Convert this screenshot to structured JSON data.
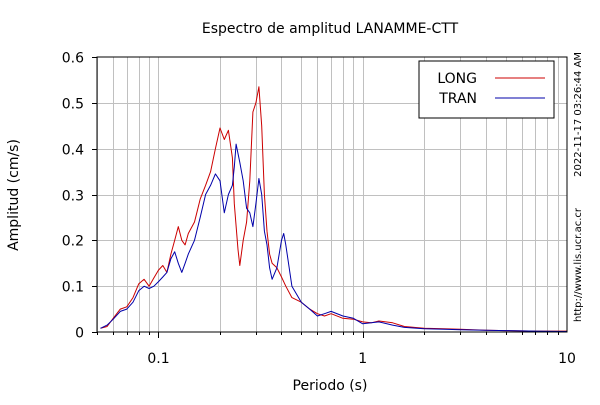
{
  "chart_data": {
    "type": "line",
    "title": "Espectro de amplitud LANAMME-CTT",
    "xlabel": "Periodo (s)",
    "ylabel": "Amplitud (cm/s)",
    "x_scale": "log",
    "xlim": [
      0.05,
      10
    ],
    "ylim": [
      0,
      0.6
    ],
    "x_ticks": [
      {
        "value": 0.1,
        "label": "0.1"
      },
      {
        "value": 1,
        "label": "1"
      },
      {
        "value": 10,
        "label": "10"
      }
    ],
    "y_ticks": [
      {
        "value": 0,
        "label": "0"
      },
      {
        "value": 0.1,
        "label": "0.1"
      },
      {
        "value": 0.2,
        "label": "0.2"
      },
      {
        "value": 0.3,
        "label": "0.3"
      },
      {
        "value": 0.4,
        "label": "0.4"
      },
      {
        "value": 0.5,
        "label": "0.5"
      },
      {
        "value": 0.6,
        "label": "0.6"
      }
    ],
    "grid": true,
    "legend_position": "top-right",
    "series": [
      {
        "name": "LONG",
        "color": "#cc0000",
        "points": [
          [
            0.052,
            0.008
          ],
          [
            0.056,
            0.012
          ],
          [
            0.06,
            0.03
          ],
          [
            0.065,
            0.05
          ],
          [
            0.07,
            0.055
          ],
          [
            0.075,
            0.075
          ],
          [
            0.08,
            0.105
          ],
          [
            0.085,
            0.115
          ],
          [
            0.09,
            0.1
          ],
          [
            0.095,
            0.118
          ],
          [
            0.1,
            0.135
          ],
          [
            0.105,
            0.145
          ],
          [
            0.11,
            0.13
          ],
          [
            0.115,
            0.17
          ],
          [
            0.12,
            0.2
          ],
          [
            0.125,
            0.23
          ],
          [
            0.13,
            0.2
          ],
          [
            0.135,
            0.19
          ],
          [
            0.14,
            0.215
          ],
          [
            0.15,
            0.24
          ],
          [
            0.16,
            0.29
          ],
          [
            0.17,
            0.32
          ],
          [
            0.18,
            0.35
          ],
          [
            0.19,
            0.4
          ],
          [
            0.2,
            0.445
          ],
          [
            0.21,
            0.42
          ],
          [
            0.22,
            0.44
          ],
          [
            0.23,
            0.38
          ],
          [
            0.235,
            0.28
          ],
          [
            0.245,
            0.18
          ],
          [
            0.25,
            0.145
          ],
          [
            0.26,
            0.2
          ],
          [
            0.27,
            0.24
          ],
          [
            0.28,
            0.33
          ],
          [
            0.29,
            0.48
          ],
          [
            0.3,
            0.5
          ],
          [
            0.31,
            0.535
          ],
          [
            0.32,
            0.45
          ],
          [
            0.33,
            0.3
          ],
          [
            0.34,
            0.22
          ],
          [
            0.35,
            0.17
          ],
          [
            0.36,
            0.15
          ],
          [
            0.38,
            0.14
          ],
          [
            0.4,
            0.12
          ],
          [
            0.42,
            0.1
          ],
          [
            0.45,
            0.075
          ],
          [
            0.5,
            0.065
          ],
          [
            0.55,
            0.05
          ],
          [
            0.6,
            0.04
          ],
          [
            0.65,
            0.035
          ],
          [
            0.7,
            0.04
          ],
          [
            0.8,
            0.03
          ],
          [
            0.9,
            0.028
          ],
          [
            1.0,
            0.022
          ],
          [
            1.1,
            0.02
          ],
          [
            1.2,
            0.024
          ],
          [
            1.4,
            0.02
          ],
          [
            1.6,
            0.012
          ],
          [
            2.0,
            0.008
          ],
          [
            2.5,
            0.007
          ],
          [
            3.0,
            0.006
          ],
          [
            4.0,
            0.004
          ],
          [
            5.0,
            0.003
          ],
          [
            7.0,
            0.002
          ],
          [
            10.0,
            0.002
          ]
        ]
      },
      {
        "name": "TRAN",
        "color": "#0000aa",
        "points": [
          [
            0.052,
            0.008
          ],
          [
            0.056,
            0.015
          ],
          [
            0.06,
            0.028
          ],
          [
            0.065,
            0.045
          ],
          [
            0.07,
            0.05
          ],
          [
            0.075,
            0.065
          ],
          [
            0.08,
            0.09
          ],
          [
            0.085,
            0.1
          ],
          [
            0.09,
            0.095
          ],
          [
            0.095,
            0.1
          ],
          [
            0.1,
            0.11
          ],
          [
            0.105,
            0.12
          ],
          [
            0.11,
            0.13
          ],
          [
            0.115,
            0.16
          ],
          [
            0.12,
            0.175
          ],
          [
            0.125,
            0.15
          ],
          [
            0.13,
            0.13
          ],
          [
            0.135,
            0.15
          ],
          [
            0.14,
            0.17
          ],
          [
            0.15,
            0.2
          ],
          [
            0.16,
            0.25
          ],
          [
            0.17,
            0.3
          ],
          [
            0.18,
            0.32
          ],
          [
            0.19,
            0.345
          ],
          [
            0.2,
            0.33
          ],
          [
            0.21,
            0.26
          ],
          [
            0.22,
            0.3
          ],
          [
            0.23,
            0.32
          ],
          [
            0.235,
            0.36
          ],
          [
            0.24,
            0.41
          ],
          [
            0.25,
            0.37
          ],
          [
            0.26,
            0.33
          ],
          [
            0.27,
            0.27
          ],
          [
            0.28,
            0.26
          ],
          [
            0.29,
            0.23
          ],
          [
            0.3,
            0.28
          ],
          [
            0.31,
            0.335
          ],
          [
            0.32,
            0.3
          ],
          [
            0.33,
            0.22
          ],
          [
            0.34,
            0.19
          ],
          [
            0.35,
            0.14
          ],
          [
            0.36,
            0.115
          ],
          [
            0.38,
            0.14
          ],
          [
            0.4,
            0.2
          ],
          [
            0.41,
            0.215
          ],
          [
            0.42,
            0.19
          ],
          [
            0.45,
            0.1
          ],
          [
            0.5,
            0.065
          ],
          [
            0.55,
            0.05
          ],
          [
            0.6,
            0.035
          ],
          [
            0.65,
            0.04
          ],
          [
            0.7,
            0.045
          ],
          [
            0.8,
            0.035
          ],
          [
            0.9,
            0.03
          ],
          [
            1.0,
            0.018
          ],
          [
            1.1,
            0.02
          ],
          [
            1.2,
            0.022
          ],
          [
            1.4,
            0.015
          ],
          [
            1.6,
            0.01
          ],
          [
            2.0,
            0.007
          ],
          [
            2.5,
            0.006
          ],
          [
            3.0,
            0.005
          ],
          [
            4.0,
            0.004
          ],
          [
            5.0,
            0.003
          ],
          [
            7.0,
            0.002
          ],
          [
            10.0,
            0.001
          ]
        ]
      }
    ]
  },
  "side_text": {
    "timestamp": "2022-11-17 03:26:44 AM",
    "url": "http://www.lis.ucr.ac.cr"
  }
}
